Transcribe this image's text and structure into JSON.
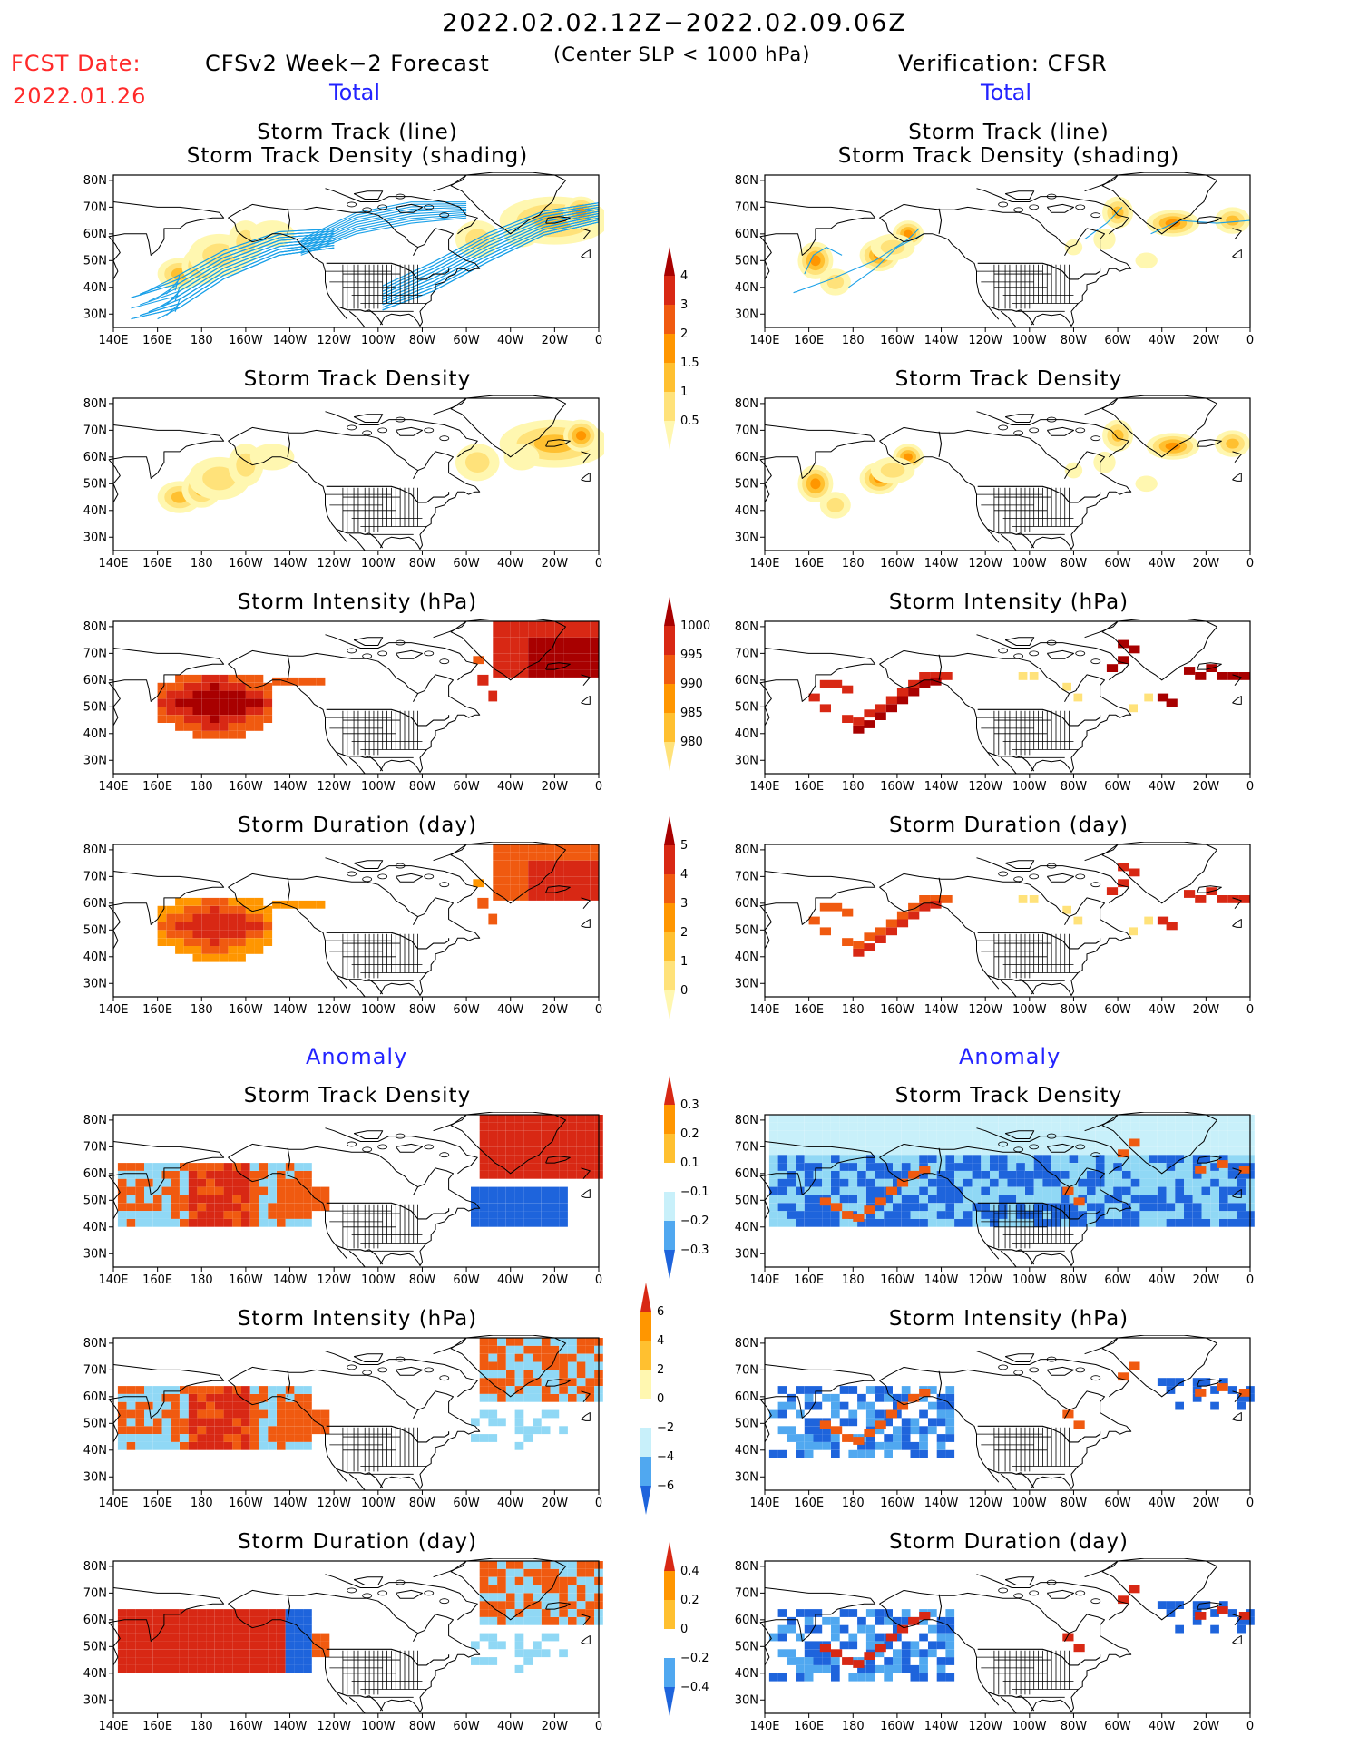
{
  "header": {
    "date_range": "2022.02.02.12Z−2022.02.09.06Z",
    "condition": "(Center SLP < 1000 hPa)",
    "fcst_date_label": "FCST Date:",
    "fcst_date": "2022.01.26",
    "left_title": "CFSv2 Week−2 Forecast",
    "right_title": "Verification: CFSR"
  },
  "sections": {
    "total": "Total",
    "anomaly": "Anomaly"
  },
  "panel_titles": {
    "track_line": "Storm Track (line)",
    "track_shading": "Storm Track Density (shading)",
    "density": "Storm Track Density",
    "intensity": "Storm Intensity (hPa)",
    "duration": "Storm Duration (day)"
  },
  "axes": {
    "lat_ticks": [
      "80N",
      "70N",
      "60N",
      "50N",
      "40N",
      "30N"
    ],
    "lon_ticks": [
      "140E",
      "160E",
      "180",
      "160W",
      "140W",
      "120W",
      "100W",
      "80W",
      "60W",
      "40W",
      "20W",
      "0"
    ]
  },
  "colorbars": {
    "density_total": [
      "4",
      "3",
      "2",
      "1.5",
      "1",
      "0.5"
    ],
    "intensity_total": [
      "1000",
      "995",
      "990",
      "985",
      "980"
    ],
    "duration_total": [
      "5",
      "4",
      "3",
      "2",
      "1",
      "0"
    ],
    "density_anomaly": [
      "0.3",
      "0.2",
      "0.1",
      "−0.1",
      "−0.2",
      "−0.3"
    ],
    "intensity_anomaly": [
      "6",
      "4",
      "2",
      "0",
      "−2",
      "−4",
      "−6"
    ],
    "duration_anomaly": [
      "0.4",
      "0.2",
      "0",
      "−0.2",
      "−0.4"
    ]
  },
  "colors": {
    "warm": [
      "#fff7b0",
      "#ffe27a",
      "#ffc030",
      "#ff9600",
      "#f05a10",
      "#d82814",
      "#a80000"
    ],
    "cool": [
      "#c8f0fa",
      "#90d8f5",
      "#50a8f0",
      "#1e64dc"
    ],
    "track_line": "#1aa0e8",
    "title_red": "#ff2a2a",
    "title_blue": "#2323ff"
  }
}
